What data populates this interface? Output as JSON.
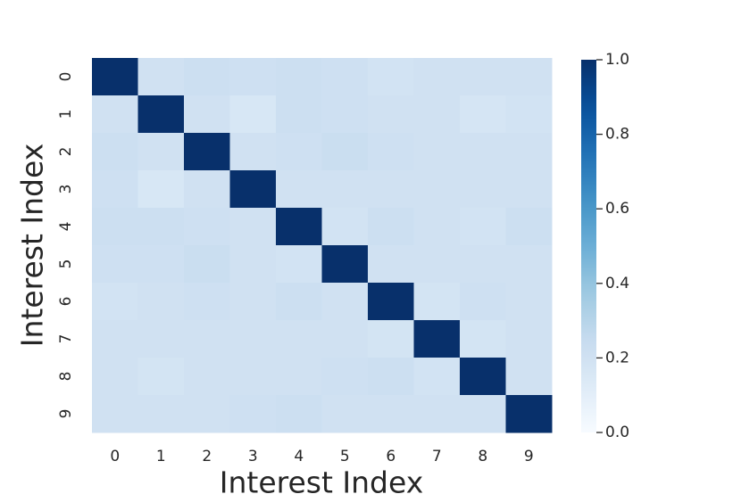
{
  "chart_data": {
    "type": "heatmap",
    "x_label": "Interest Index",
    "y_label": "Interest Index",
    "x_categories": [
      "0",
      "1",
      "2",
      "3",
      "4",
      "5",
      "6",
      "7",
      "8",
      "9"
    ],
    "y_categories": [
      "0",
      "1",
      "2",
      "3",
      "4",
      "5",
      "6",
      "7",
      "8",
      "9"
    ],
    "values": [
      [
        1,
        0.2,
        0.22,
        0.21,
        0.22,
        0.21,
        0.19,
        0.2,
        0.2,
        0.2
      ],
      [
        0.2,
        1,
        0.2,
        0.16,
        0.22,
        0.21,
        0.2,
        0.2,
        0.17,
        0.19
      ],
      [
        0.22,
        0.2,
        1,
        0.2,
        0.21,
        0.23,
        0.21,
        0.2,
        0.2,
        0.2
      ],
      [
        0.21,
        0.16,
        0.2,
        1,
        0.2,
        0.2,
        0.2,
        0.2,
        0.2,
        0.2
      ],
      [
        0.22,
        0.22,
        0.21,
        0.2,
        1,
        0.19,
        0.22,
        0.2,
        0.19,
        0.22
      ],
      [
        0.21,
        0.21,
        0.23,
        0.2,
        0.19,
        1,
        0.2,
        0.2,
        0.2,
        0.2
      ],
      [
        0.19,
        0.2,
        0.21,
        0.2,
        0.22,
        0.2,
        1,
        0.18,
        0.21,
        0.2
      ],
      [
        0.2,
        0.2,
        0.2,
        0.2,
        0.2,
        0.2,
        0.18,
        1,
        0.18,
        0.2
      ],
      [
        0.2,
        0.18,
        0.2,
        0.2,
        0.2,
        0.21,
        0.22,
        0.19,
        1,
        0.2
      ],
      [
        0.2,
        0.2,
        0.2,
        0.21,
        0.22,
        0.2,
        0.2,
        0.2,
        0.2,
        1
      ]
    ],
    "colormap": "Blues",
    "clim": [
      0,
      1
    ],
    "cticks": [
      {
        "value": 0,
        "label": "0.0"
      },
      0.2,
      0.4,
      0.6,
      0.8,
      {
        "value": 1,
        "label": "1.0"
      }
    ]
  }
}
